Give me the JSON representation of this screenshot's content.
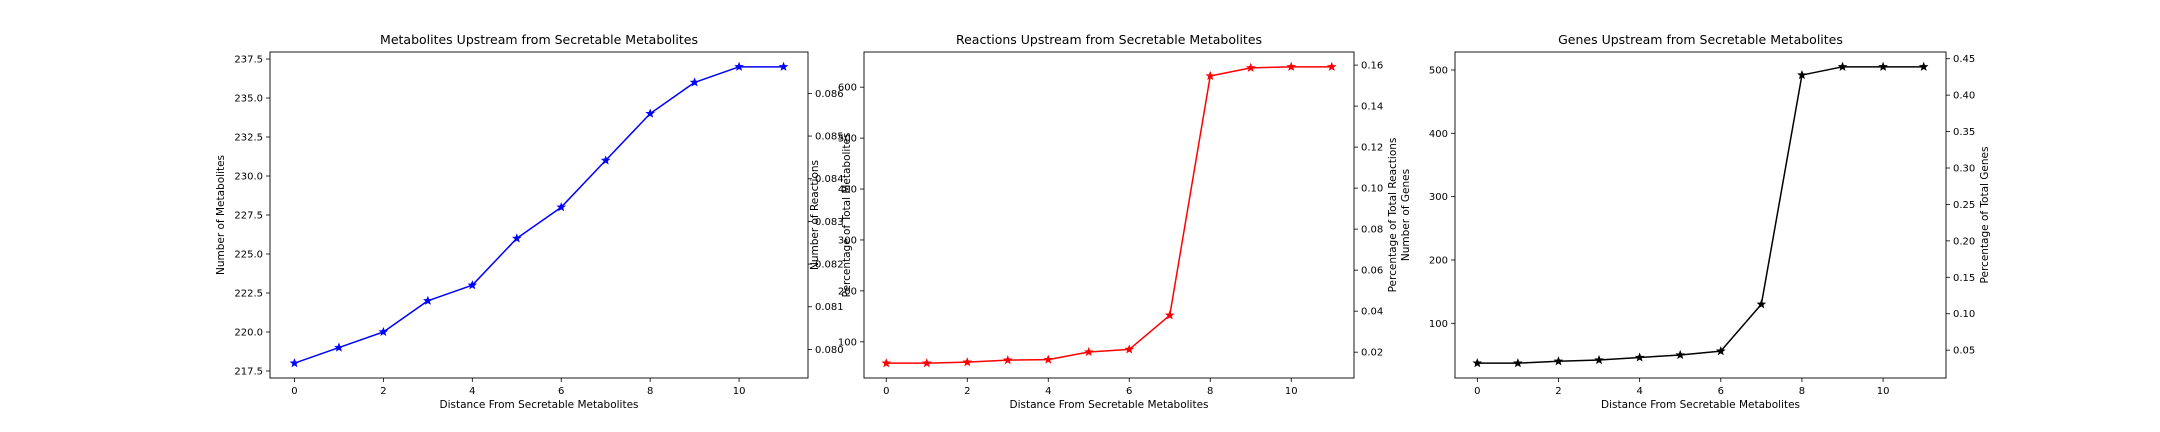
{
  "chart_data": [
    {
      "type": "line",
      "title": "Metabolites Upstream from Secretable Metabolites",
      "xlabel": "Distance From Secretable Metabolites",
      "ylabel": "Number of Metabolites",
      "ylabel_right": "Percentage of Total Metabolites",
      "color": "#0000ff",
      "marker": "star",
      "grid": false,
      "x": [
        0,
        1,
        2,
        3,
        4,
        5,
        6,
        7,
        8,
        9,
        10,
        11
      ],
      "values": [
        218,
        219,
        220,
        222,
        223,
        226,
        228,
        231,
        234,
        236,
        237,
        237
      ],
      "xlim": [
        -0.55,
        11.55
      ],
      "ylim": [
        217.05,
        237.95
      ],
      "xticks": [
        0,
        2,
        4,
        6,
        8,
        10
      ],
      "xtick_labels": [
        "0",
        "2",
        "4",
        "6",
        "8",
        "10"
      ],
      "yticks": [
        217.5,
        220,
        222.5,
        225,
        227.5,
        230,
        232.5,
        235,
        237.5
      ],
      "ytick_labels": [
        "217.5",
        "220.0",
        "222.5",
        "225.0",
        "227.5",
        "230.0",
        "232.5",
        "235.0",
        "237.5"
      ],
      "ylim_right": [
        0.07933,
        0.08697
      ],
      "yticks_right": [
        0.08,
        0.081,
        0.082,
        0.083,
        0.084,
        0.085,
        0.086
      ],
      "ytick_labels_right": [
        "0.080",
        "0.081",
        "0.082",
        "0.083",
        "0.084",
        "0.085",
        "0.086"
      ]
    },
    {
      "type": "line",
      "title": "Reactions Upstream from Secretable Metabolites",
      "xlabel": "Distance From Secretable Metabolites",
      "ylabel": "Number of Reactions",
      "ylabel_right": "Percentage of Total Reactions",
      "color": "#ff0000",
      "marker": "star",
      "grid": false,
      "x": [
        0,
        1,
        2,
        3,
        4,
        5,
        6,
        7,
        8,
        9,
        10,
        11
      ],
      "values": [
        58,
        58,
        60,
        64,
        65,
        80,
        85,
        152,
        622,
        638,
        640,
        640
      ],
      "xlim": [
        -0.55,
        11.55
      ],
      "ylim": [
        28.9,
        669.1
      ],
      "xticks": [
        0,
        2,
        4,
        6,
        8,
        10
      ],
      "xtick_labels": [
        "0",
        "2",
        "4",
        "6",
        "8",
        "10"
      ],
      "yticks": [
        100,
        200,
        300,
        400,
        500,
        600
      ],
      "ytick_labels": [
        "100",
        "200",
        "300",
        "400",
        "500",
        "600"
      ],
      "ylim_right": [
        0.0074,
        0.1664
      ],
      "yticks_right": [
        0.02,
        0.04,
        0.06,
        0.08,
        0.1,
        0.12,
        0.14,
        0.16
      ],
      "ytick_labels_right": [
        "0.02",
        "0.04",
        "0.06",
        "0.08",
        "0.10",
        "0.12",
        "0.14",
        "0.16"
      ]
    },
    {
      "type": "line",
      "title": "Genes Upstream from Secretable Metabolites",
      "xlabel": "Distance From Secretable Metabolites",
      "ylabel": "Number of Genes",
      "ylabel_right": "Percentage of Total Genes",
      "color": "#000000",
      "marker": "star",
      "grid": false,
      "x": [
        0,
        1,
        2,
        3,
        4,
        5,
        6,
        7,
        8,
        9,
        10,
        11
      ],
      "values": [
        37,
        37,
        40,
        42,
        46,
        50,
        56,
        130,
        492,
        505,
        505,
        505
      ],
      "xlim": [
        -0.55,
        11.55
      ],
      "ylim": [
        13.6,
        528.4
      ],
      "xticks": [
        0,
        2,
        4,
        6,
        8,
        10
      ],
      "xtick_labels": [
        "0",
        "2",
        "4",
        "6",
        "8",
        "10"
      ],
      "yticks": [
        100,
        200,
        300,
        400,
        500
      ],
      "ytick_labels": [
        "100",
        "200",
        "300",
        "400",
        "500"
      ],
      "ylim_right": [
        0.0118,
        0.4592
      ],
      "yticks_right": [
        0.05,
        0.1,
        0.15,
        0.2,
        0.25,
        0.3,
        0.35,
        0.4,
        0.45
      ],
      "ytick_labels_right": [
        "0.05",
        "0.10",
        "0.15",
        "0.20",
        "0.25",
        "0.30",
        "0.35",
        "0.40",
        "0.45"
      ]
    }
  ]
}
